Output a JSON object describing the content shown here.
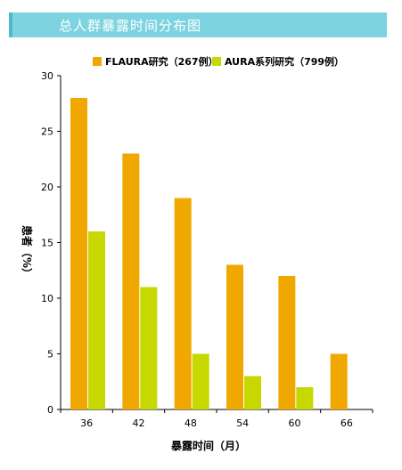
{
  "header": {
    "title": "总人群暴露时间分布图"
  },
  "chart_data": {
    "type": "bar",
    "categories": [
      "36",
      "42",
      "48",
      "54",
      "60",
      "66"
    ],
    "series": [
      {
        "name": "FLAURA研究（267例）",
        "values": [
          28,
          23,
          19,
          13,
          12,
          5
        ],
        "color": "#f0a800"
      },
      {
        "name": "AURA系列研究（799例）",
        "values": [
          16,
          11,
          5,
          3,
          2,
          null
        ],
        "color": "#c6d800"
      }
    ],
    "title": "总人群暴露时间分布图",
    "xlabel": "暴露时间（月）",
    "ylabel": "患者（%）",
    "ylim": [
      0,
      30
    ],
    "yticks": [
      0,
      5,
      10,
      15,
      20,
      25,
      30
    ],
    "legend_position": "top",
    "grid": false
  }
}
